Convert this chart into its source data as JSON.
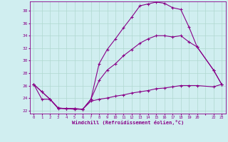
{
  "xlabel": "Windchill (Refroidissement éolien,°C)",
  "bg_color": "#d0eef0",
  "line_color": "#880088",
  "grid_color": "#b0d8d0",
  "ylim": [
    21.5,
    39.5
  ],
  "xlim": [
    -0.5,
    23.5
  ],
  "yticks": [
    22,
    24,
    26,
    28,
    30,
    32,
    34,
    36,
    38
  ],
  "xtick_labels": [
    "0",
    "1",
    "2",
    "3",
    "4",
    "5",
    "6",
    "7",
    "8",
    "9",
    "10",
    "11",
    "12",
    "13",
    "14",
    "15",
    "16",
    "17",
    "18",
    "19",
    "20",
    "",
    "22",
    "23"
  ],
  "xtick_pos": [
    0,
    1,
    2,
    3,
    4,
    5,
    6,
    7,
    8,
    9,
    10,
    11,
    12,
    13,
    14,
    15,
    16,
    17,
    18,
    19,
    20,
    21,
    22,
    23
  ],
  "curve1_x": [
    0,
    1,
    2,
    3,
    4,
    5,
    6,
    7,
    8,
    9,
    10,
    11,
    12,
    13,
    14,
    15,
    16,
    17,
    18,
    19,
    20,
    22,
    23
  ],
  "curve1_y": [
    26.2,
    25.0,
    23.8,
    22.4,
    22.3,
    22.3,
    22.2,
    23.8,
    29.5,
    31.8,
    33.5,
    35.3,
    37.0,
    38.8,
    39.1,
    39.4,
    39.2,
    38.5,
    38.2,
    35.4,
    32.2,
    28.5,
    26.2
  ],
  "curve2_x": [
    0,
    1,
    2,
    3,
    4,
    5,
    6,
    7,
    8,
    9,
    10,
    11,
    12,
    13,
    14,
    15,
    16,
    17,
    18,
    19,
    20,
    22,
    23
  ],
  "curve2_y": [
    26.2,
    25.0,
    23.8,
    22.4,
    22.3,
    22.3,
    22.2,
    23.8,
    26.8,
    28.5,
    29.5,
    30.8,
    31.8,
    32.8,
    33.5,
    34.0,
    34.0,
    33.8,
    34.0,
    33.0,
    32.2,
    28.5,
    26.2
  ],
  "curve3_x": [
    0,
    1,
    2,
    3,
    4,
    5,
    6,
    7,
    8,
    9,
    10,
    11,
    12,
    13,
    14,
    15,
    16,
    17,
    18,
    19,
    20,
    22,
    23
  ],
  "curve3_y": [
    26.2,
    23.8,
    23.8,
    22.3,
    22.3,
    22.2,
    22.2,
    23.5,
    23.8,
    24.0,
    24.3,
    24.5,
    24.8,
    25.0,
    25.2,
    25.5,
    25.6,
    25.8,
    26.0,
    26.0,
    26.0,
    25.8,
    26.2
  ]
}
